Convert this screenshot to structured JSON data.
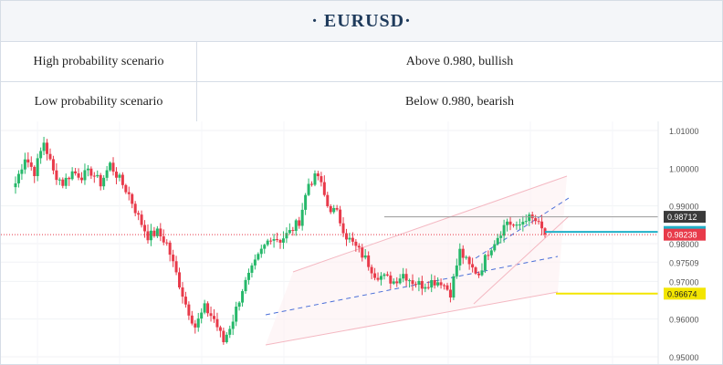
{
  "header": {
    "title": "·  EURUSD·"
  },
  "scenarios": [
    {
      "label": "High  probability  scenario",
      "value": "Above  0.980,  bullish"
    },
    {
      "label": "Low  probability  scenario",
      "value": "Below  0.980,  bearish"
    }
  ],
  "chart_data": {
    "type": "candlestick",
    "symbol": "EURUSD",
    "ylim": [
      0.95,
      1.01
    ],
    "y_ticks": [
      "1.01000",
      "1.00000",
      "0.99000",
      "0.98000",
      "0.97509",
      "0.97000",
      "0.96000",
      "0.95000"
    ],
    "price_markers": [
      {
        "label": "0.98712",
        "value": 0.98712,
        "color": "#3a3a3a"
      },
      {
        "label": "0.98310",
        "value": 0.9831,
        "color": "#20b0c8"
      },
      {
        "label": "0.98238",
        "value": 0.98238,
        "color": "#e83a4a"
      },
      {
        "label": "0.96674",
        "value": 0.96674,
        "color": "#f3e500"
      }
    ],
    "anchors": [
      [
        0,
        0.996
      ],
      [
        3,
        1.003
      ],
      [
        6,
        0.999
      ],
      [
        9,
        1.007
      ],
      [
        12,
        0.999
      ],
      [
        15,
        0.996
      ],
      [
        18,
        0.999
      ],
      [
        21,
        0.998
      ],
      [
        24,
        0.999
      ],
      [
        27,
        0.996
      ],
      [
        30,
        1.001
      ],
      [
        33,
        0.997
      ],
      [
        36,
        0.993
      ],
      [
        39,
        0.987
      ],
      [
        42,
        0.982
      ],
      [
        45,
        0.983
      ],
      [
        48,
        0.98
      ],
      [
        51,
        0.972
      ],
      [
        54,
        0.964
      ],
      [
        57,
        0.958
      ],
      [
        60,
        0.963
      ],
      [
        63,
        0.96
      ],
      [
        66,
        0.954
      ],
      [
        69,
        0.96
      ],
      [
        72,
        0.968
      ],
      [
        75,
        0.973
      ],
      [
        78,
        0.978
      ],
      [
        81,
        0.982
      ],
      [
        84,
        0.981
      ],
      [
        87,
        0.983
      ],
      [
        90,
        0.986
      ],
      [
        93,
        0.996
      ],
      [
        96,
        0.998
      ],
      [
        99,
        0.99
      ],
      [
        102,
        0.988
      ],
      [
        105,
        0.982
      ],
      [
        108,
        0.979
      ],
      [
        111,
        0.976
      ],
      [
        114,
        0.972
      ],
      [
        117,
        0.971
      ],
      [
        120,
        0.97
      ],
      [
        123,
        0.972
      ],
      [
        126,
        0.97
      ],
      [
        129,
        0.969
      ],
      [
        132,
        0.97
      ],
      [
        135,
        0.97
      ],
      [
        138,
        0.967
      ],
      [
        141,
        0.978
      ],
      [
        144,
        0.974
      ],
      [
        147,
        0.972
      ],
      [
        150,
        0.978
      ],
      [
        153,
        0.982
      ],
      [
        156,
        0.986
      ],
      [
        159,
        0.984
      ],
      [
        162,
        0.987
      ],
      [
        165,
        0.986
      ],
      [
        168,
        0.9824
      ]
    ]
  }
}
